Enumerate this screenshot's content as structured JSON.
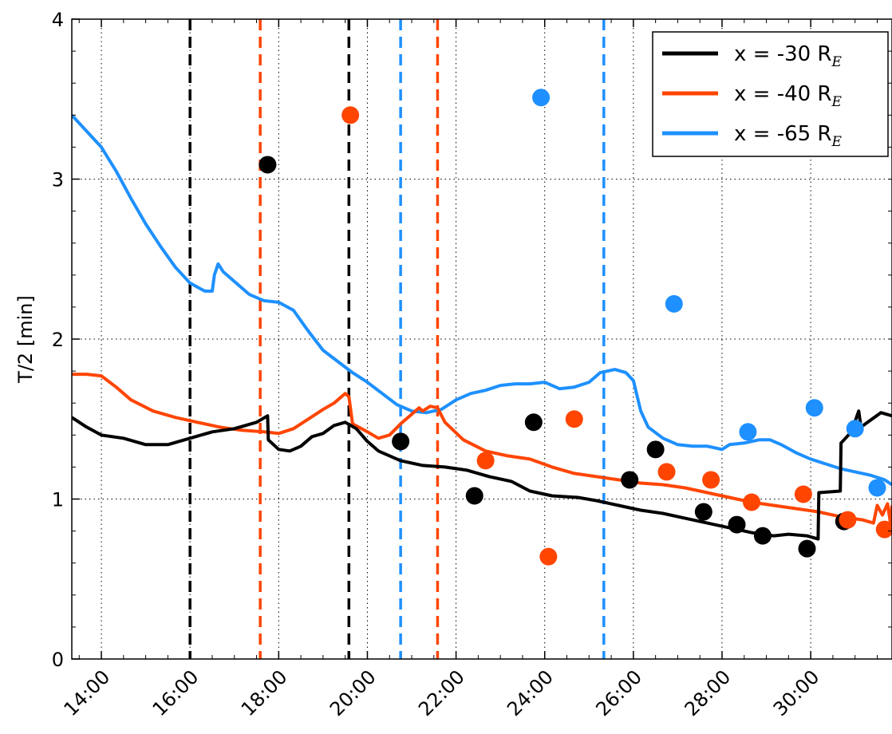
{
  "chart_data": {
    "type": "line",
    "ylabel": "T/2 [min]",
    "xlabel": "",
    "x_unit": "minutes",
    "xlim": [
      "13:20",
      "31:50"
    ],
    "ylim": [
      0,
      4
    ],
    "xticks": [
      "14:00",
      "16:00",
      "18:00",
      "20:00",
      "22:00",
      "24:00",
      "26:00",
      "28:00",
      "30:00"
    ],
    "yticks": [
      "0",
      "1",
      "2",
      "3",
      "4"
    ],
    "grid": true,
    "legend_position": "top-right",
    "series": [
      {
        "name": "x = -30 R",
        "name_subscript": "E",
        "color": "#000000",
        "line": [
          [
            "13:20",
            1.51
          ],
          [
            "13:40",
            1.45
          ],
          [
            "14:00",
            1.4
          ],
          [
            "14:30",
            1.38
          ],
          [
            "15:00",
            1.34
          ],
          [
            "15:30",
            1.34
          ],
          [
            "16:00",
            1.38
          ],
          [
            "16:30",
            1.42
          ],
          [
            "17:00",
            1.44
          ],
          [
            "17:30",
            1.48
          ],
          [
            "17:45",
            1.52
          ],
          [
            "17:46",
            1.37
          ],
          [
            "18:00",
            1.31
          ],
          [
            "18:15",
            1.3
          ],
          [
            "18:30",
            1.33
          ],
          [
            "18:45",
            1.39
          ],
          [
            "19:00",
            1.41
          ],
          [
            "19:15",
            1.46
          ],
          [
            "19:30",
            1.48
          ],
          [
            "19:45",
            1.44
          ],
          [
            "20:00",
            1.36
          ],
          [
            "20:15",
            1.3
          ],
          [
            "20:45",
            1.24
          ],
          [
            "21:15",
            1.21
          ],
          [
            "21:45",
            1.2
          ],
          [
            "22:15",
            1.18
          ],
          [
            "22:45",
            1.14
          ],
          [
            "23:15",
            1.11
          ],
          [
            "23:40",
            1.05
          ],
          [
            "24:10",
            1.02
          ],
          [
            "24:45",
            1.01
          ],
          [
            "25:10",
            0.99
          ],
          [
            "25:40",
            0.96
          ],
          [
            "26:10",
            0.93
          ],
          [
            "26:40",
            0.91
          ],
          [
            "27:10",
            0.88
          ],
          [
            "27:40",
            0.85
          ],
          [
            "28:10",
            0.82
          ],
          [
            "28:40",
            0.79
          ],
          [
            "29:10",
            0.77
          ],
          [
            "29:30",
            0.78
          ],
          [
            "29:55",
            0.77
          ],
          [
            "30:10",
            0.75
          ],
          [
            "30:11",
            1.04
          ],
          [
            "30:40",
            1.05
          ],
          [
            "30:41",
            1.35
          ],
          [
            "30:55",
            1.42
          ],
          [
            "31:05",
            1.55
          ],
          [
            "31:08",
            1.45
          ],
          [
            "31:20",
            1.49
          ],
          [
            "31:35",
            1.54
          ],
          [
            "31:50",
            1.52
          ]
        ],
        "markers": [
          [
            "17:45",
            3.09
          ],
          [
            "20:45",
            1.36
          ],
          [
            "22:25",
            1.02
          ],
          [
            "23:45",
            1.48
          ],
          [
            "25:55",
            1.12
          ],
          [
            "26:30",
            1.31
          ],
          [
            "27:35",
            0.92
          ],
          [
            "28:20",
            0.84
          ],
          [
            "28:55",
            0.77
          ],
          [
            "29:55",
            0.69
          ],
          [
            "30:45",
            0.86
          ]
        ]
      },
      {
        "name": "x = -40 R",
        "name_subscript": "E",
        "color": "#ff4500",
        "line": [
          [
            "13:20",
            1.78
          ],
          [
            "13:40",
            1.78
          ],
          [
            "14:00",
            1.77
          ],
          [
            "14:20",
            1.7
          ],
          [
            "14:40",
            1.62
          ],
          [
            "15:10",
            1.55
          ],
          [
            "15:40",
            1.51
          ],
          [
            "16:10",
            1.48
          ],
          [
            "16:40",
            1.45
          ],
          [
            "17:10",
            1.43
          ],
          [
            "17:40",
            1.42
          ],
          [
            "18:00",
            1.41
          ],
          [
            "18:20",
            1.44
          ],
          [
            "18:40",
            1.5
          ],
          [
            "19:00",
            1.56
          ],
          [
            "19:15",
            1.6
          ],
          [
            "19:30",
            1.66
          ],
          [
            "19:35",
            1.64
          ],
          [
            "19:40",
            1.47
          ],
          [
            "20:00",
            1.42
          ],
          [
            "20:15",
            1.38
          ],
          [
            "20:30",
            1.4
          ],
          [
            "20:45",
            1.47
          ],
          [
            "21:00",
            1.53
          ],
          [
            "21:10",
            1.57
          ],
          [
            "21:15",
            1.55
          ],
          [
            "21:25",
            1.58
          ],
          [
            "21:35",
            1.57
          ],
          [
            "21:45",
            1.48
          ],
          [
            "22:10",
            1.37
          ],
          [
            "22:40",
            1.3
          ],
          [
            "23:10",
            1.27
          ],
          [
            "23:40",
            1.25
          ],
          [
            "24:10",
            1.2
          ],
          [
            "24:40",
            1.16
          ],
          [
            "25:10",
            1.14
          ],
          [
            "25:40",
            1.12
          ],
          [
            "26:10",
            1.1
          ],
          [
            "26:40",
            1.09
          ],
          [
            "27:10",
            1.07
          ],
          [
            "27:40",
            1.04
          ],
          [
            "28:10",
            1.01
          ],
          [
            "28:40",
            0.98
          ],
          [
            "29:10",
            0.96
          ],
          [
            "29:40",
            0.94
          ],
          [
            "30:10",
            0.92
          ],
          [
            "30:40",
            0.89
          ],
          [
            "31:10",
            0.87
          ],
          [
            "31:25",
            0.85
          ],
          [
            "31:30",
            0.96
          ],
          [
            "31:37",
            0.9
          ],
          [
            "31:44",
            0.97
          ],
          [
            "31:48",
            0.85
          ],
          [
            "31:50",
            0.96
          ]
        ],
        "markers": [
          [
            "19:37",
            3.4
          ],
          [
            "22:40",
            1.24
          ],
          [
            "24:05",
            0.64
          ],
          [
            "24:40",
            1.5
          ],
          [
            "26:45",
            1.17
          ],
          [
            "27:45",
            1.12
          ],
          [
            "28:40",
            0.98
          ],
          [
            "29:50",
            1.03
          ],
          [
            "30:50",
            0.87
          ],
          [
            "31:40",
            0.81
          ]
        ]
      },
      {
        "name": "x = -65 R",
        "name_subscript": "E",
        "color": "#1e90ff",
        "line": [
          [
            "13:20",
            3.4
          ],
          [
            "13:40",
            3.3
          ],
          [
            "14:00",
            3.2
          ],
          [
            "14:20",
            3.05
          ],
          [
            "14:40",
            2.88
          ],
          [
            "15:00",
            2.72
          ],
          [
            "15:20",
            2.58
          ],
          [
            "15:40",
            2.45
          ],
          [
            "16:00",
            2.35
          ],
          [
            "16:20",
            2.3
          ],
          [
            "16:30",
            2.3
          ],
          [
            "16:33",
            2.4
          ],
          [
            "16:38",
            2.47
          ],
          [
            "16:45",
            2.42
          ],
          [
            "17:00",
            2.36
          ],
          [
            "17:20",
            2.28
          ],
          [
            "17:40",
            2.24
          ],
          [
            "18:00",
            2.23
          ],
          [
            "18:20",
            2.18
          ],
          [
            "18:40",
            2.05
          ],
          [
            "19:00",
            1.93
          ],
          [
            "19:20",
            1.86
          ],
          [
            "19:40",
            1.79
          ],
          [
            "20:00",
            1.73
          ],
          [
            "20:20",
            1.66
          ],
          [
            "20:40",
            1.59
          ],
          [
            "21:00",
            1.55
          ],
          [
            "21:20",
            1.54
          ],
          [
            "21:40",
            1.56
          ],
          [
            "22:00",
            1.62
          ],
          [
            "22:20",
            1.66
          ],
          [
            "22:40",
            1.68
          ],
          [
            "23:00",
            1.71
          ],
          [
            "23:20",
            1.72
          ],
          [
            "23:40",
            1.72
          ],
          [
            "24:00",
            1.73
          ],
          [
            "24:20",
            1.69
          ],
          [
            "24:40",
            1.7
          ],
          [
            "25:00",
            1.73
          ],
          [
            "25:15",
            1.79
          ],
          [
            "25:35",
            1.81
          ],
          [
            "25:50",
            1.79
          ],
          [
            "26:00",
            1.74
          ],
          [
            "26:10",
            1.55
          ],
          [
            "26:20",
            1.45
          ],
          [
            "26:40",
            1.38
          ],
          [
            "27:00",
            1.34
          ],
          [
            "27:20",
            1.33
          ],
          [
            "27:40",
            1.33
          ],
          [
            "28:00",
            1.31
          ],
          [
            "28:10",
            1.34
          ],
          [
            "28:30",
            1.35
          ],
          [
            "28:50",
            1.37
          ],
          [
            "29:05",
            1.37
          ],
          [
            "29:20",
            1.34
          ],
          [
            "29:40",
            1.29
          ],
          [
            "30:00",
            1.25
          ],
          [
            "30:20",
            1.22
          ],
          [
            "30:40",
            1.19
          ],
          [
            "31:00",
            1.17
          ],
          [
            "31:20",
            1.15
          ],
          [
            "31:40",
            1.12
          ],
          [
            "31:50",
            1.09
          ]
        ],
        "markers": [
          [
            "23:55",
            3.51
          ],
          [
            "26:55",
            2.22
          ],
          [
            "28:35",
            1.42
          ],
          [
            "30:05",
            1.57
          ],
          [
            "31:00",
            1.44
          ],
          [
            "31:30",
            1.07
          ]
        ]
      }
    ],
    "vlines": [
      {
        "x": "16:00",
        "color": "#000000"
      },
      {
        "x": "17:35",
        "color": "#ff4500"
      },
      {
        "x": "19:35",
        "color": "#000000"
      },
      {
        "x": "20:45",
        "color": "#1e90ff"
      },
      {
        "x": "21:35",
        "color": "#ff4500"
      },
      {
        "x": "25:20",
        "color": "#1e90ff"
      }
    ]
  }
}
